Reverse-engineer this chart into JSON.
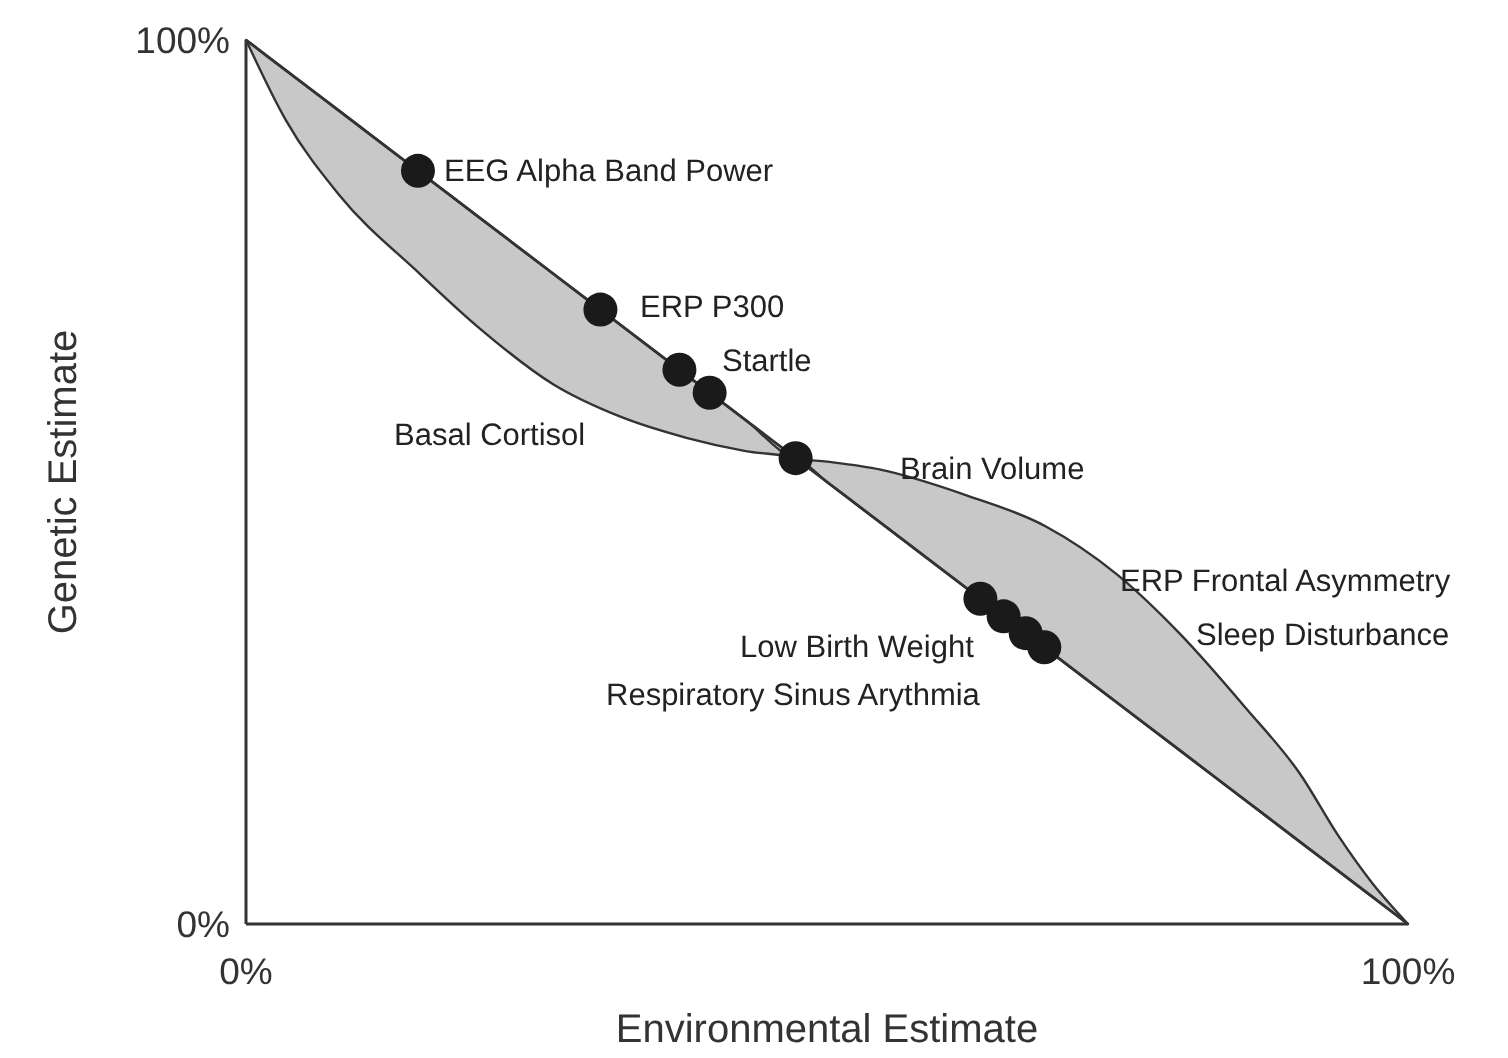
{
  "chart_data": {
    "type": "line",
    "xlabel": "Environmental Estimate",
    "ylabel": "Genetic Estimate",
    "xlim": [
      0,
      100
    ],
    "ylim": [
      0,
      100
    ],
    "xticks": [
      {
        "value": 0,
        "label": "0%"
      },
      {
        "value": 100,
        "label": "100%"
      }
    ],
    "yticks": [
      {
        "value": 0,
        "label": "0%"
      },
      {
        "value": 100,
        "label": "100%"
      }
    ],
    "series": [
      {
        "color": "#333333",
        "x": [
          0,
          3.4,
          8,
          15,
          20,
          26.5,
          32,
          37.9,
          43,
          47.3,
          50,
          54.6,
          62,
          68.8,
          75,
          80.4,
          86,
          90.7,
          94,
          97,
          100
        ],
        "values": [
          100,
          96.6,
          92,
          85,
          80,
          73.5,
          68,
          62.1,
          57,
          52.7,
          50,
          45.4,
          38,
          31.2,
          25,
          19.6,
          14,
          9.3,
          6,
          3,
          0
        ],
        "lower": [
          100,
          91,
          82.5,
          73.5,
          67.5,
          61,
          57.5,
          55,
          53.5,
          52.7,
          50,
          45.4,
          38,
          31.2,
          25,
          19.6,
          14,
          9.3,
          6,
          3,
          0
        ],
        "upper": [
          100,
          96.6,
          92,
          85,
          80,
          73.5,
          68,
          62.1,
          57,
          52.7,
          52.3,
          51.4,
          48.5,
          45,
          39.5,
          32.8,
          24.5,
          17,
          10,
          4.5,
          0
        ]
      },
      {
        "type": "scatter",
        "color": "#1a1a1a",
        "marker": "circle",
        "x": [
          14.8,
          30.5,
          37.3,
          39.9,
          47.3,
          63.2,
          65.2,
          67.1,
          68.7
        ],
        "values": [
          85.2,
          69.5,
          62.7,
          60.1,
          52.7,
          36.8,
          34.8,
          32.9,
          31.3
        ]
      }
    ],
    "annotations": [
      "EEG Alpha Band Power",
      "ERP P300",
      "Startle",
      "Basal Cortisol",
      "Brain Volume",
      "ERP Frontal Asymmetry",
      "Sleep Disturbance",
      "Low Birth Weight",
      "Respiratory Sinus Arythmia"
    ]
  }
}
